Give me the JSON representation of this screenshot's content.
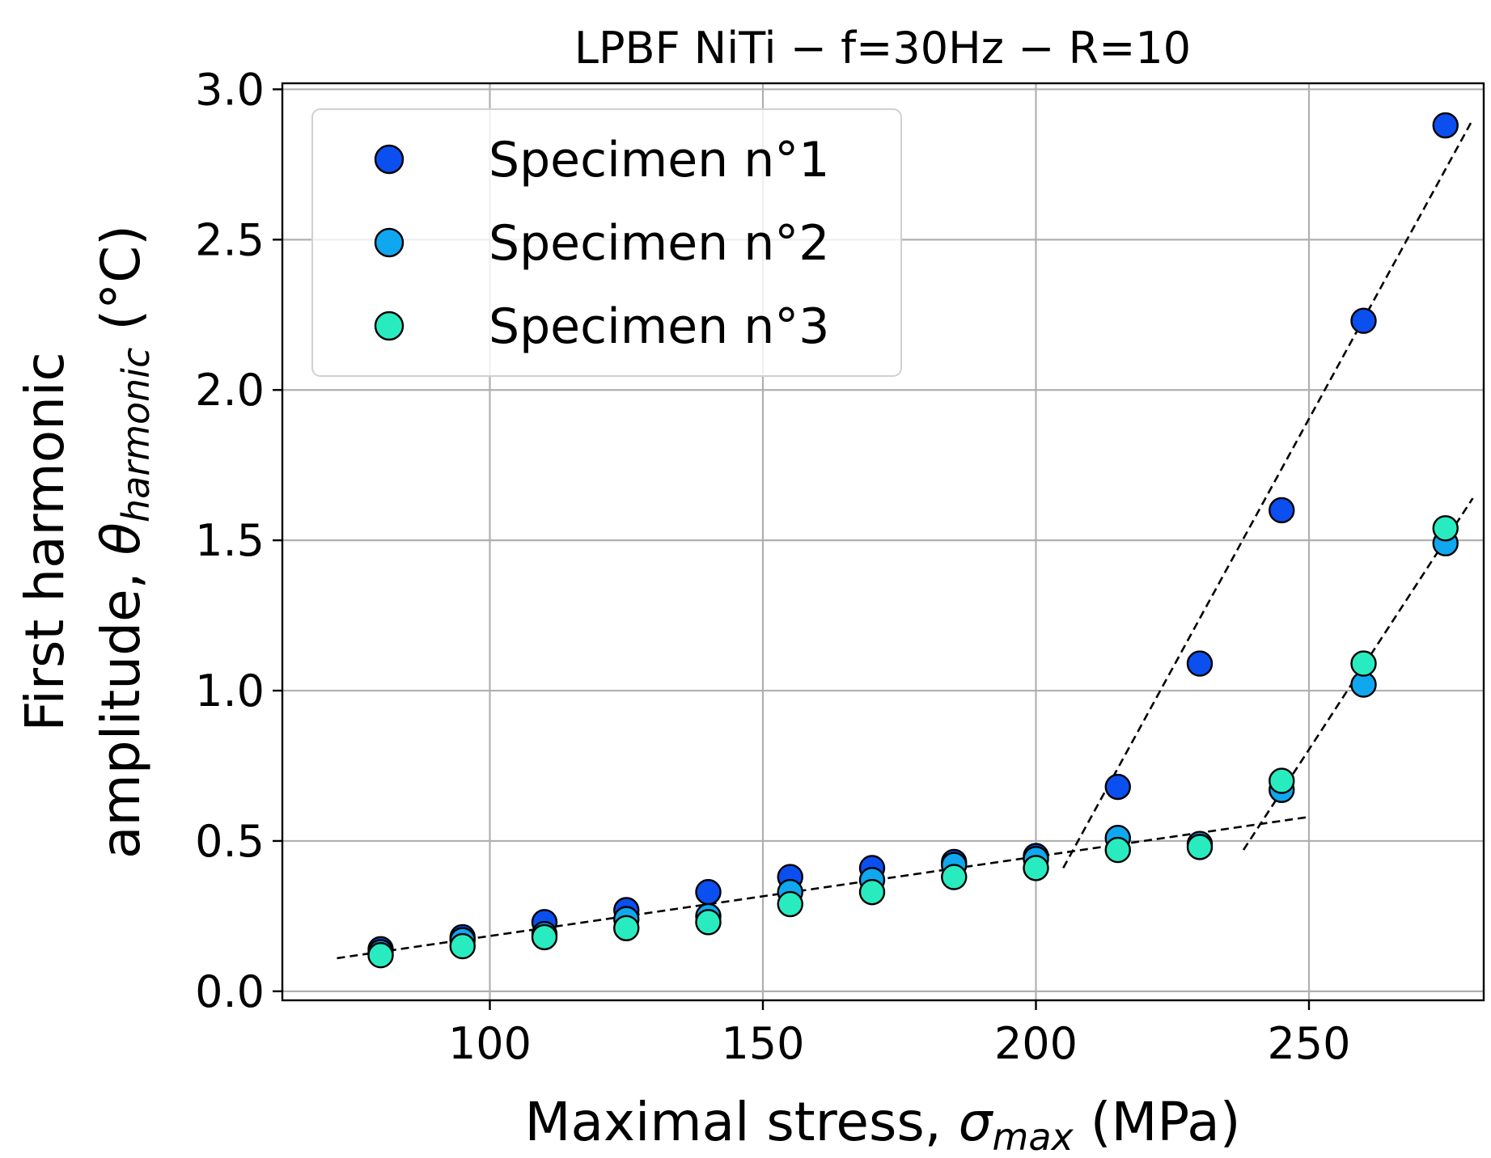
{
  "chart_data": {
    "type": "scatter",
    "title": "LPBF NiTi − f=30Hz − R=10",
    "xlabel": {
      "prefix": "Maximal stress, ",
      "symbol": "σ",
      "subscript": "max",
      "suffix": " (MPa)"
    },
    "ylabel": {
      "line1": "First harmonic",
      "line2_prefix": "amplitude, ",
      "symbol": "θ",
      "subscript": "harmonic",
      "line2_suffix": "  (°C)"
    },
    "xlim": [
      62,
      282
    ],
    "ylim": [
      -0.03,
      3.02
    ],
    "xticks": [
      100,
      150,
      200,
      250
    ],
    "yticks": [
      0.0,
      0.5,
      1.0,
      1.5,
      2.0,
      2.5,
      3.0
    ],
    "xtick_labels": [
      "100",
      "150",
      "200",
      "250"
    ],
    "ytick_labels": [
      "0.0",
      "0.5",
      "1.0",
      "1.5",
      "2.0",
      "2.5",
      "3.0"
    ],
    "grid": true,
    "legend_position": "top-left",
    "series": [
      {
        "name": "Specimen n°1",
        "color": "#0b4ff0",
        "x": [
          80,
          95,
          110,
          125,
          140,
          155,
          170,
          185,
          200,
          215,
          230,
          245,
          260,
          275
        ],
        "y": [
          0.14,
          0.18,
          0.23,
          0.27,
          0.33,
          0.38,
          0.41,
          0.43,
          0.45,
          0.68,
          1.09,
          1.6,
          2.23,
          2.88
        ]
      },
      {
        "name": "Specimen n°2",
        "color": "#0fa8f0",
        "x": [
          80,
          95,
          110,
          125,
          140,
          155,
          170,
          185,
          200,
          215,
          230,
          245,
          260,
          275
        ],
        "y": [
          0.13,
          0.17,
          0.19,
          0.24,
          0.25,
          0.33,
          0.37,
          0.42,
          0.44,
          0.51,
          0.49,
          0.67,
          1.02,
          1.49
        ]
      },
      {
        "name": "Specimen n°3",
        "color": "#28ecc0",
        "x": [
          80,
          95,
          110,
          125,
          140,
          155,
          170,
          185,
          200,
          215,
          230,
          245,
          260,
          275
        ],
        "y": [
          0.12,
          0.15,
          0.18,
          0.21,
          0.23,
          0.29,
          0.33,
          0.38,
          0.41,
          0.47,
          0.48,
          0.7,
          1.09,
          1.54
        ]
      }
    ],
    "fit_lines": [
      {
        "name": "fit-low-stress",
        "x": [
          72,
          250
        ],
        "y": [
          0.11,
          0.58
        ]
      },
      {
        "name": "fit-specimen-1",
        "x": [
          205,
          280
        ],
        "y": [
          0.41,
          2.9
        ]
      },
      {
        "name": "fit-specimens-2-3",
        "x": [
          238,
          280
        ],
        "y": [
          0.47,
          1.64
        ]
      }
    ]
  }
}
